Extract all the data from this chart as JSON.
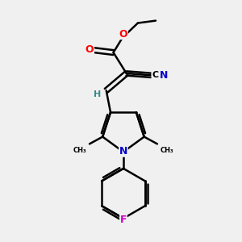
{
  "background_color": "#f0f0f0",
  "bond_color": "#000000",
  "bond_width": 1.8,
  "atom_colors": {
    "O": "#ff0000",
    "N": "#0000cc",
    "C": "#000000",
    "H": "#3a8a8a",
    "F": "#cc00cc"
  },
  "font_size": 8,
  "fig_width": 3.0,
  "fig_height": 3.0,
  "dpi": 100
}
